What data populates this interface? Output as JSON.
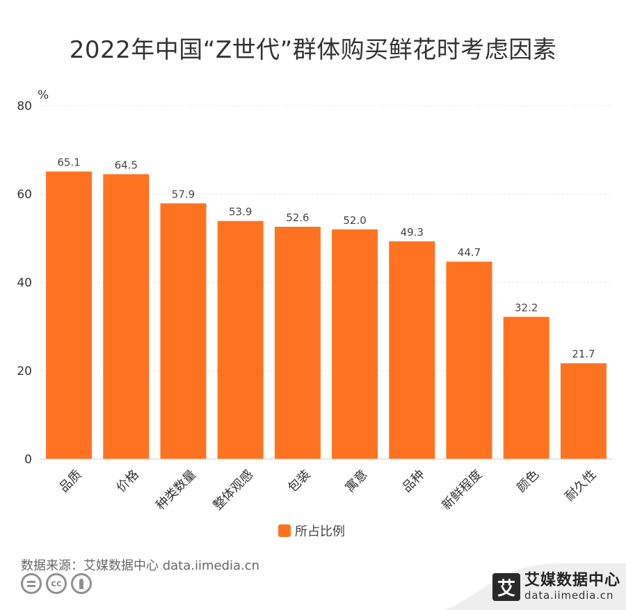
{
  "title": "2022年中国“Z世代”群体购买鲜花时考虑因素",
  "chart_data": {
    "type": "bar",
    "title": "2022年中国“Z世代”群体购买鲜花时考虑因素",
    "ylabel": "%",
    "ylim": [
      0,
      80
    ],
    "yticks": [
      0,
      20,
      40,
      60,
      80
    ],
    "categories": [
      "品质",
      "价格",
      "种类数量",
      "整体观感",
      "包装",
      "寓意",
      "品种",
      "新鲜程度",
      "颜色",
      "耐久性"
    ],
    "series": [
      {
        "name": "所占比例",
        "values": [
          65.1,
          64.5,
          57.9,
          53.9,
          52.6,
          52.0,
          49.3,
          44.7,
          32.2,
          21.7
        ],
        "labels": [
          "65.1",
          "64.5",
          "57.9",
          "53.9",
          "52.6",
          "52.0",
          "49.3",
          "44.7",
          "32.2",
          "21.7"
        ]
      }
    ],
    "legend_position": "bottom-center",
    "grid": true,
    "bar_color": "#ff7320"
  },
  "footer": {
    "source": "数据来源：艾媒数据中心 data.iimedia.cn",
    "license_icons": [
      "equals-icon",
      "cc-icon",
      "person-icon"
    ],
    "cc_text": "cc",
    "brand_logo": "艾",
    "brand_name": "艾媒数据中心",
    "brand_url": "data.iimedia.cn"
  }
}
